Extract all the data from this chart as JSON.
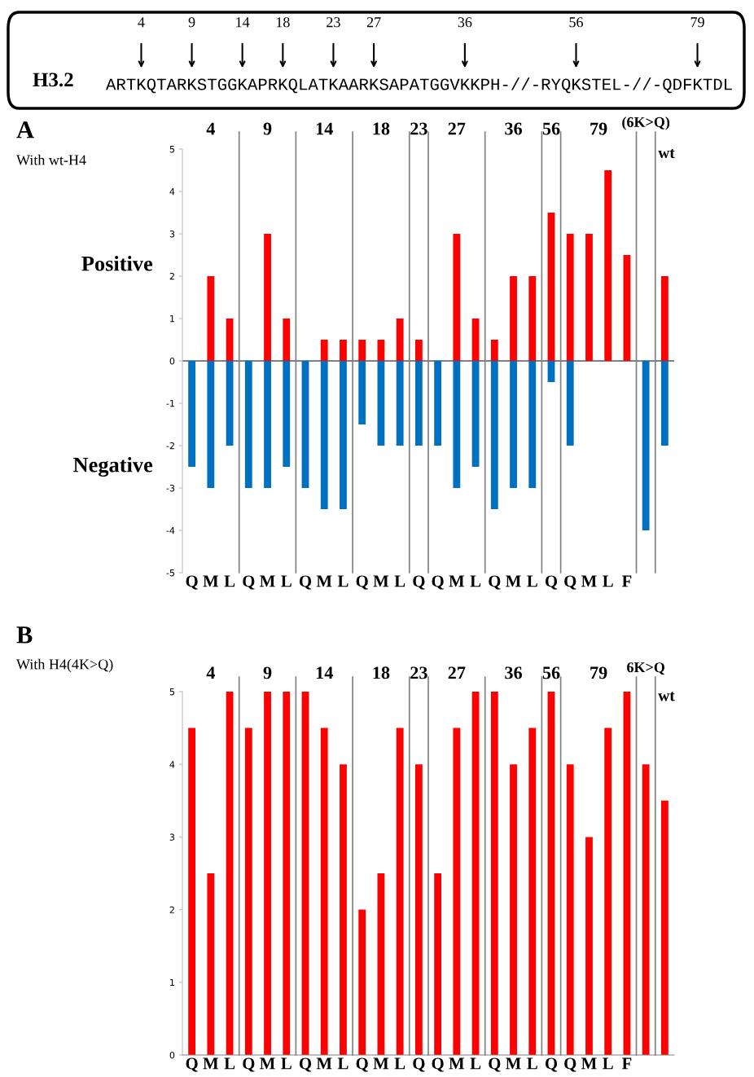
{
  "chart_data": [
    {
      "type": "other",
      "title": "H3.2",
      "annotations": [
        "ARTKQTARKSTGGKAPRKQLATKAARKSAPATGGVKKPH-//-RYQKSTEL-//-QDFKTDL",
        "4",
        "9",
        "14",
        "18",
        "23",
        "27",
        "36",
        "56",
        "79"
      ]
    },
    {
      "type": "bar",
      "title": "A",
      "subtitle": "With wt-H4",
      "stacked": true,
      "categories": [
        "Q",
        "M",
        "L",
        "Q",
        "M",
        "L",
        "Q",
        "M",
        "L",
        "Q",
        "M",
        "L",
        "Q",
        "Q",
        "M",
        "L",
        "Q",
        "M",
        "L",
        "Q",
        "Q",
        "M",
        "L",
        "F",
        null,
        null
      ],
      "series": [
        {
          "name": "Positive",
          "color": "#ff0000",
          "values": [
            null,
            2,
            1,
            null,
            3,
            1,
            null,
            0.5,
            0.5,
            0.5,
            0.5,
            1,
            0.5,
            null,
            3,
            1,
            0.5,
            2,
            2,
            3.5,
            3,
            3,
            4.5,
            2.5,
            null,
            2
          ]
        },
        {
          "name": "Negative",
          "color": "#0070c0",
          "values": [
            -2.5,
            -3,
            -2,
            -3,
            -3,
            -2.5,
            -3,
            -3.5,
            -3.5,
            -1.5,
            -2,
            -2,
            -2,
            -2,
            -3,
            -2.5,
            -3.5,
            -3,
            -3,
            -0.5,
            -2,
            null,
            null,
            null,
            -4,
            -2
          ]
        }
      ],
      "ylim": [
        -5,
        5
      ],
      "yticks": [
        -5,
        -4,
        -3,
        -2,
        -1,
        0,
        1,
        2,
        3,
        4,
        5
      ],
      "annotations": [
        "4",
        "9",
        "14",
        "18",
        "23",
        "27",
        "36",
        "56",
        "79",
        "(6K>Q)",
        "wt"
      ],
      "ref_lines": [
        {
          "axis": "y",
          "value": 0,
          "color": "#808080"
        }
      ]
    },
    {
      "type": "bar",
      "title": "B",
      "subtitle": "With H4(4K>Q)",
      "categories": [
        "Q",
        "M",
        "L",
        "Q",
        "M",
        "L",
        "Q",
        "M",
        "L",
        "Q",
        "M",
        "L",
        "Q",
        "Q",
        "M",
        "L",
        "Q",
        "M",
        "L",
        "Q",
        "Q",
        "M",
        "L",
        "F",
        null,
        null
      ],
      "series": [
        {
          "color": "#ff0000",
          "values": [
            4.5,
            2.5,
            5,
            4.5,
            5,
            5,
            5,
            4.5,
            4,
            2,
            2.5,
            4.5,
            4,
            2.5,
            4.5,
            5,
            5,
            4,
            4.5,
            5,
            4,
            3,
            4.5,
            5,
            4,
            3.5
          ]
        }
      ],
      "ylim": [
        0,
        5
      ],
      "yticks": [
        0,
        1,
        2,
        3,
        4,
        5
      ],
      "annotations": [
        "4",
        "9",
        "14",
        "18",
        "23",
        "27",
        "36",
        "56",
        "79",
        "6K>Q",
        "wt"
      ]
    }
  ]
}
